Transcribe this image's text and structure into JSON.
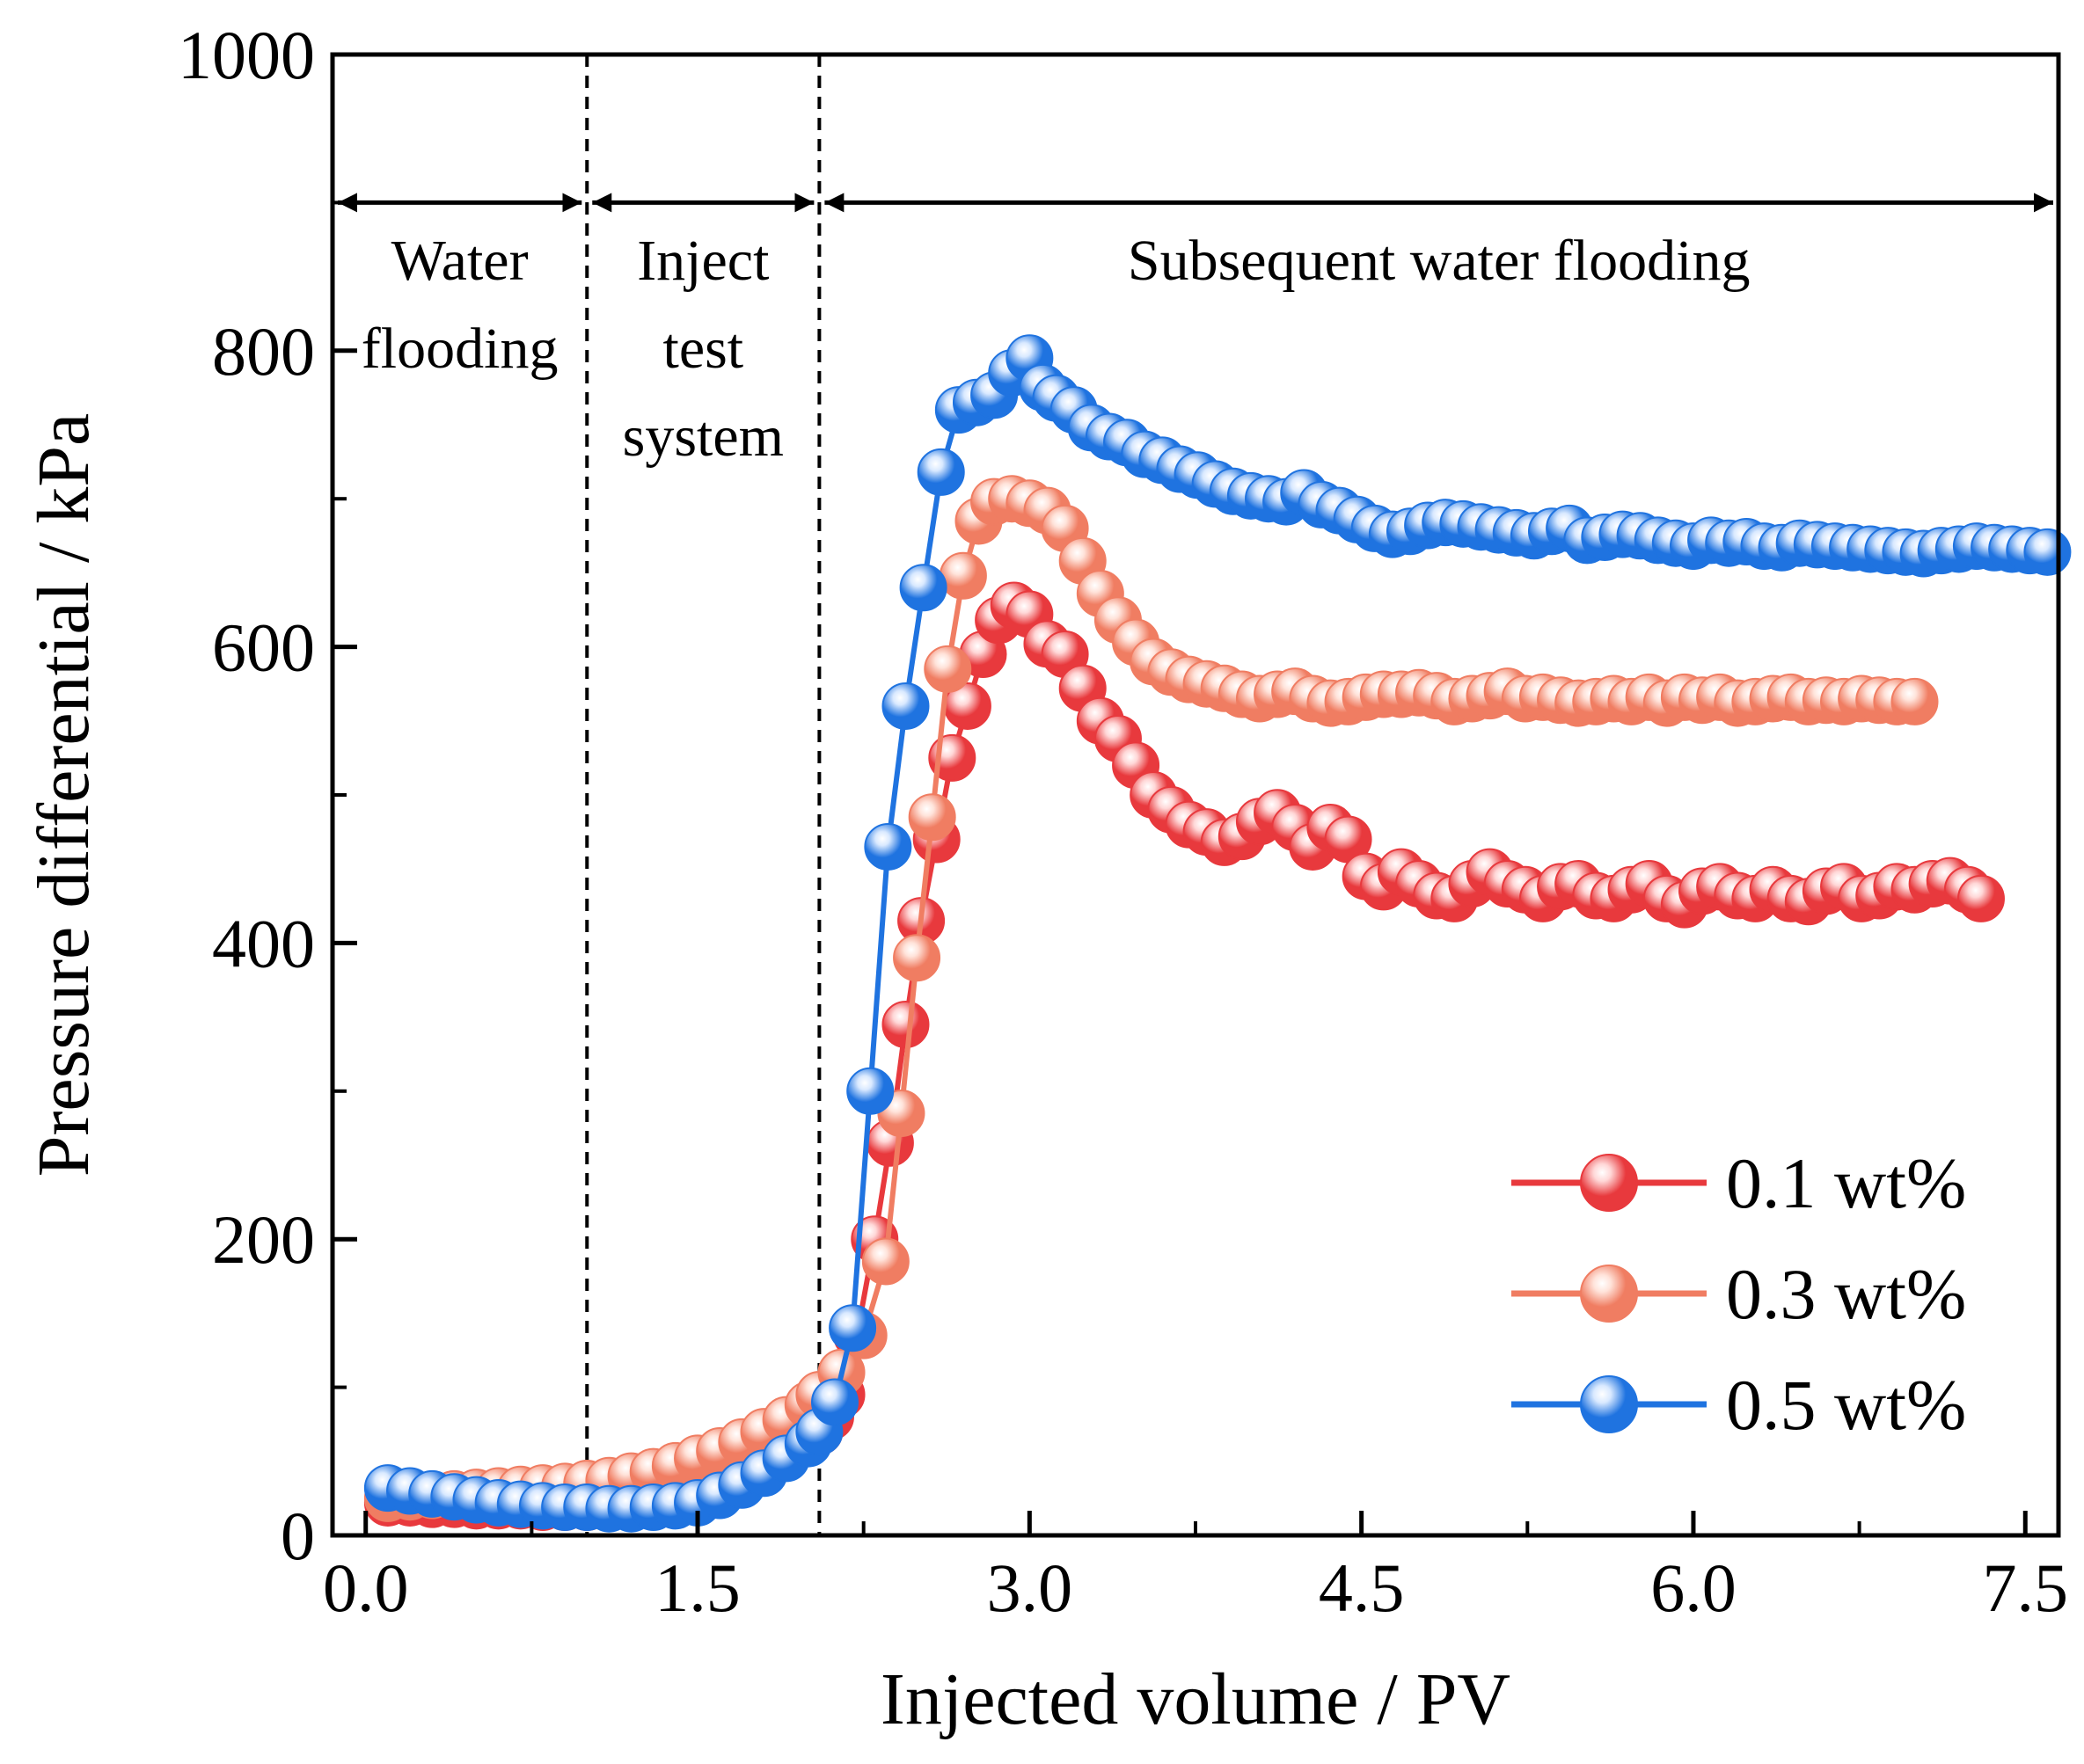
{
  "chart_data": {
    "type": "line",
    "xlabel": "Injected volume / PV",
    "ylabel": "Pressure differential / kPa",
    "xlim": [
      -0.15,
      7.65
    ],
    "ylim": [
      0,
      1000
    ],
    "x_ticks": [
      0.0,
      1.5,
      3.0,
      4.5,
      6.0,
      7.5
    ],
    "x_tick_labels": [
      "0.0",
      "1.5",
      "3.0",
      "4.5",
      "6.0",
      "7.5"
    ],
    "x_minor_ticks": [
      0.75,
      2.25,
      3.75,
      5.25,
      6.75
    ],
    "y_ticks": [
      0,
      200,
      400,
      600,
      800,
      1000
    ],
    "y_tick_labels": [
      "0",
      "200",
      "400",
      "600",
      "800",
      "1000"
    ],
    "y_minor_ticks": [
      100,
      300,
      500,
      700,
      900
    ],
    "legend_position": "bottom-right",
    "stage_boundaries": [
      1.0,
      2.05
    ],
    "stages": [
      {
        "label_lines": [
          "Water",
          "flooding"
        ],
        "x_start": -0.15,
        "x_end": 1.0
      },
      {
        "label_lines": [
          "Inject",
          "test",
          "system"
        ],
        "x_start": 1.0,
        "x_end": 2.05
      },
      {
        "label_lines": [
          "Subsequent water flooding"
        ],
        "x_start": 2.05,
        "x_end": 7.65
      }
    ],
    "stage_arrow_y": 900,
    "series": [
      {
        "name": "0.1 wt%",
        "color": "#e8393d",
        "highlight": "#ffd7d7",
        "x": [
          0.1,
          0.2,
          0.3,
          0.4,
          0.5,
          0.6,
          0.7,
          0.8,
          0.9,
          1.0,
          1.1,
          1.2,
          1.3,
          1.4,
          1.5,
          1.6,
          1.7,
          1.8,
          1.9,
          2.0,
          2.05,
          2.1,
          2.15,
          2.22,
          2.3,
          2.37,
          2.44,
          2.51,
          2.58,
          2.65,
          2.72,
          2.79,
          2.86,
          2.93,
          3.0,
          3.08,
          3.16,
          3.24,
          3.32,
          3.4,
          3.48,
          3.56,
          3.64,
          3.72,
          3.8,
          3.88,
          3.96,
          4.04,
          4.12,
          4.2,
          4.28,
          4.36,
          4.44,
          4.52,
          4.6,
          4.68,
          4.76,
          4.84,
          4.92,
          5.0,
          5.08,
          5.16,
          5.24,
          5.32,
          5.4,
          5.48,
          5.56,
          5.64,
          5.72,
          5.8,
          5.88,
          5.96,
          6.04,
          6.12,
          6.2,
          6.28,
          6.36,
          6.44,
          6.52,
          6.6,
          6.68,
          6.76,
          6.84,
          6.92,
          7.0,
          7.08,
          7.16,
          7.24,
          7.3
        ],
        "y": [
          22,
          22,
          21,
          21,
          20,
          20,
          20,
          19,
          19,
          19,
          19,
          20,
          22,
          25,
          29,
          34,
          40,
          47,
          55,
          64,
          70,
          80,
          95,
          135,
          200,
          265,
          345,
          415,
          470,
          525,
          560,
          595,
          618,
          628,
          622,
          602,
          595,
          572,
          550,
          538,
          520,
          500,
          490,
          480,
          475,
          468,
          472,
          482,
          488,
          478,
          465,
          478,
          470,
          445,
          438,
          448,
          440,
          432,
          430,
          440,
          448,
          440,
          436,
          430,
          438,
          440,
          432,
          430,
          436,
          440,
          430,
          426,
          435,
          438,
          432,
          430,
          436,
          430,
          428,
          435,
          438,
          430,
          432,
          438,
          436,
          440,
          442,
          436,
          430
        ]
      },
      {
        "name": "0.3 wt%",
        "color": "#f07d62",
        "highlight": "#ffe3da",
        "x": [
          0.1,
          0.2,
          0.3,
          0.4,
          0.5,
          0.6,
          0.7,
          0.8,
          0.9,
          1.0,
          1.1,
          1.2,
          1.3,
          1.4,
          1.5,
          1.6,
          1.7,
          1.8,
          1.9,
          2.0,
          2.05,
          2.15,
          2.25,
          2.35,
          2.42,
          2.49,
          2.56,
          2.63,
          2.7,
          2.77,
          2.84,
          2.92,
          3.0,
          3.08,
          3.16,
          3.24,
          3.32,
          3.4,
          3.48,
          3.56,
          3.64,
          3.72,
          3.8,
          3.88,
          3.96,
          4.04,
          4.12,
          4.2,
          4.28,
          4.36,
          4.44,
          4.52,
          4.6,
          4.68,
          4.76,
          4.84,
          4.92,
          5.0,
          5.08,
          5.16,
          5.24,
          5.32,
          5.4,
          5.48,
          5.56,
          5.64,
          5.72,
          5.8,
          5.88,
          5.96,
          6.04,
          6.12,
          6.2,
          6.28,
          6.36,
          6.44,
          6.52,
          6.6,
          6.68,
          6.76,
          6.84,
          6.92,
          7.0
        ],
        "y": [
          25,
          26,
          27,
          28,
          29,
          30,
          31,
          32,
          33,
          35,
          37,
          40,
          43,
          47,
          52,
          57,
          63,
          70,
          78,
          88,
          95,
          110,
          135,
          185,
          285,
          390,
          485,
          585,
          648,
          685,
          698,
          700,
          697,
          692,
          680,
          658,
          636,
          618,
          603,
          590,
          583,
          578,
          575,
          572,
          568,
          565,
          568,
          570,
          565,
          562,
          563,
          566,
          568,
          568,
          569,
          567,
          563,
          565,
          567,
          570,
          565,
          566,
          564,
          562,
          563,
          565,
          563,
          566,
          562,
          566,
          564,
          566,
          562,
          563,
          565,
          566,
          563,
          564,
          563,
          565,
          564,
          563,
          563
        ]
      },
      {
        "name": "0.5 wt%",
        "color": "#1f73e0",
        "highlight": "#d9e9ff",
        "x": [
          0.1,
          0.2,
          0.3,
          0.4,
          0.5,
          0.6,
          0.7,
          0.8,
          0.9,
          1.0,
          1.1,
          1.2,
          1.3,
          1.4,
          1.5,
          1.6,
          1.7,
          1.8,
          1.9,
          2.0,
          2.05,
          2.12,
          2.2,
          2.28,
          2.36,
          2.44,
          2.52,
          2.6,
          2.68,
          2.76,
          2.84,
          2.92,
          3.0,
          3.06,
          3.12,
          3.2,
          3.28,
          3.36,
          3.44,
          3.52,
          3.6,
          3.68,
          3.76,
          3.84,
          3.92,
          4.0,
          4.08,
          4.16,
          4.24,
          4.32,
          4.4,
          4.48,
          4.56,
          4.64,
          4.72,
          4.8,
          4.88,
          4.96,
          5.04,
          5.12,
          5.2,
          5.28,
          5.36,
          5.44,
          5.52,
          5.6,
          5.68,
          5.76,
          5.84,
          5.92,
          6.0,
          6.08,
          6.16,
          6.24,
          6.32,
          6.4,
          6.48,
          6.56,
          6.64,
          6.72,
          6.8,
          6.88,
          6.96,
          7.04,
          7.12,
          7.2,
          7.28,
          7.36,
          7.44,
          7.52,
          7.6
        ],
        "y": [
          32,
          30,
          28,
          26,
          24,
          22,
          21,
          20,
          19,
          19,
          18,
          18,
          19,
          20,
          22,
          27,
          34,
          42,
          52,
          62,
          70,
          90,
          140,
          300,
          465,
          560,
          640,
          718,
          760,
          765,
          770,
          785,
          795,
          775,
          768,
          760,
          748,
          742,
          738,
          730,
          726,
          720,
          716,
          710,
          705,
          702,
          700,
          698,
          704,
          696,
          692,
          686,
          680,
          676,
          678,
          682,
          684,
          683,
          681,
          679,
          677,
          675,
          678,
          680,
          672,
          674,
          676,
          675,
          672,
          670,
          668,
          672,
          670,
          671,
          668,
          667,
          670,
          669,
          668,
          667,
          666,
          665,
          664,
          663,
          665,
          666,
          668,
          667,
          666,
          665,
          664
        ]
      }
    ]
  }
}
